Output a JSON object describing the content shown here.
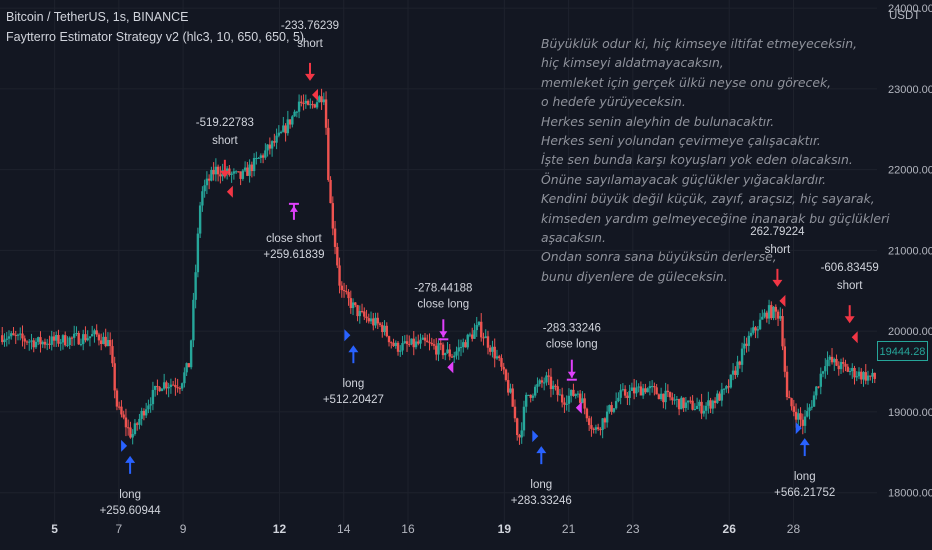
{
  "header": {
    "symbol": "Bitcoin / TetherUS, 1s, BINANCE",
    "strategy": "Faytterro Estimator Strategy v2 (hlc3, 10, 650, 650, 5)"
  },
  "poem_lines": [
    "Büyüklük odur ki, hiç kimseye iltifat etmeyeceksin,",
    "hiç kimseyi aldatmayacaksın,",
    "memleket için gerçek ülkü neyse onu görecek,",
    "o hedefe yürüyeceksin.",
    "Herkes senin aleyhin de bulunacaktır.",
    "Herkes seni yolundan çevirmeye çalışacaktır.",
    "İşte sen bunda karşı koyuşları yok eden olacaksın.",
    "Önüne sayılamayacak güçlükler yığacaklardır.",
    "Kendini büyük değil küçük, zayıf, araçsız, hiç sayarak,",
    "kimseden yardım gelmeyeceğine inanarak bu güçlükleri",
    "aşacaksın.",
    "Ondan sonra sana büyüksün derlerse,",
    "bunu diyenlere de güleceksin."
  ],
  "colors": {
    "up": "#26a69a",
    "down": "#ef5350",
    "long": "#2962ff",
    "short": "#f23645",
    "close": "#e040fb",
    "background": "#131722"
  },
  "chart_data": {
    "type": "candlestick",
    "title": "Bitcoin / TetherUS, 1s, BINANCE",
    "y_unit": "USDT",
    "ylim": [
      17600,
      24100
    ],
    "yticks": [
      18000,
      19000,
      20000,
      21000,
      22000,
      23000,
      24000
    ],
    "ytick_labels": [
      "18000.00",
      "19000.00",
      "20000.00",
      "21000.00",
      "22000.00",
      "23000.00",
      "24000.00"
    ],
    "xlim": [
      3.3,
      30.6
    ],
    "xticks": [
      5,
      7,
      9,
      12,
      14,
      16,
      19,
      21,
      23,
      26,
      28
    ],
    "xticks_bold": [
      5,
      12,
      19,
      26
    ],
    "last_price": "19444.28",
    "price_path": [
      [
        3.3,
        19950
      ],
      [
        4.5,
        19860
      ],
      [
        5.5,
        19900
      ],
      [
        6.3,
        19950
      ],
      [
        6.7,
        19850
      ],
      [
        6.95,
        19050
      ],
      [
        7.4,
        18700
      ],
      [
        7.8,
        19050
      ],
      [
        8.3,
        19350
      ],
      [
        8.9,
        19350
      ],
      [
        9.2,
        19600
      ],
      [
        9.55,
        21700
      ],
      [
        10.0,
        22000
      ],
      [
        10.8,
        21900
      ],
      [
        11.4,
        22150
      ],
      [
        12.0,
        22400
      ],
      [
        12.4,
        22650
      ],
      [
        12.6,
        22850
      ],
      [
        12.9,
        22750
      ],
      [
        13.4,
        22950
      ],
      [
        13.55,
        21700
      ],
      [
        13.9,
        20500
      ],
      [
        14.5,
        20200
      ],
      [
        15.2,
        20050
      ],
      [
        15.6,
        19800
      ],
      [
        16.5,
        19850
      ],
      [
        17.4,
        19700
      ],
      [
        18.2,
        20050
      ],
      [
        18.8,
        19650
      ],
      [
        19.2,
        19200
      ],
      [
        19.45,
        18650
      ],
      [
        19.7,
        19200
      ],
      [
        20.3,
        19400
      ],
      [
        20.8,
        19150
      ],
      [
        21.3,
        19250
      ],
      [
        21.8,
        18750
      ],
      [
        22.6,
        19200
      ],
      [
        23.4,
        19300
      ],
      [
        24.5,
        19100
      ],
      [
        25.2,
        19050
      ],
      [
        25.9,
        19250
      ],
      [
        26.6,
        19900
      ],
      [
        27.2,
        20250
      ],
      [
        27.6,
        20200
      ],
      [
        27.8,
        19150
      ],
      [
        28.3,
        18850
      ],
      [
        28.6,
        19150
      ],
      [
        29.0,
        19650
      ],
      [
        29.8,
        19500
      ],
      [
        30.6,
        19400
      ]
    ],
    "signals": [
      {
        "kind": "long",
        "day": 7.35,
        "price": 18580,
        "label": "long",
        "value": "+259.60944"
      },
      {
        "kind": "short",
        "day": 10.3,
        "price": 21750,
        "label": "short",
        "value": "-519.22783"
      },
      {
        "kind": "close",
        "day": 12.45,
        "price": 21700,
        "label": "close short",
        "value": "+259.61839"
      },
      {
        "kind": "short",
        "day": 12.95,
        "price": 22950,
        "label": "short",
        "value": "-233.76239"
      },
      {
        "kind": "long",
        "day": 14.3,
        "price": 19950,
        "label": "long",
        "value": "+512.20427"
      },
      {
        "kind": "close",
        "day": 17.1,
        "price": 19800,
        "label": "close long",
        "value": "-278.44188"
      },
      {
        "kind": "long",
        "day": 20.15,
        "price": 18700,
        "label": "long",
        "value": "+283.33246"
      },
      {
        "kind": "close",
        "day": 21.1,
        "price": 19300,
        "label": "close long",
        "value": "-283.33246"
      },
      {
        "kind": "short",
        "day": 27.5,
        "price": 20400,
        "label": "short",
        "value": "262.79224"
      },
      {
        "kind": "long",
        "day": 28.35,
        "price": 18800,
        "label": "long",
        "value": "+566.21752"
      },
      {
        "kind": "short",
        "day": 29.75,
        "price": 19950,
        "label": "short",
        "value": "-606.83459"
      }
    ]
  }
}
